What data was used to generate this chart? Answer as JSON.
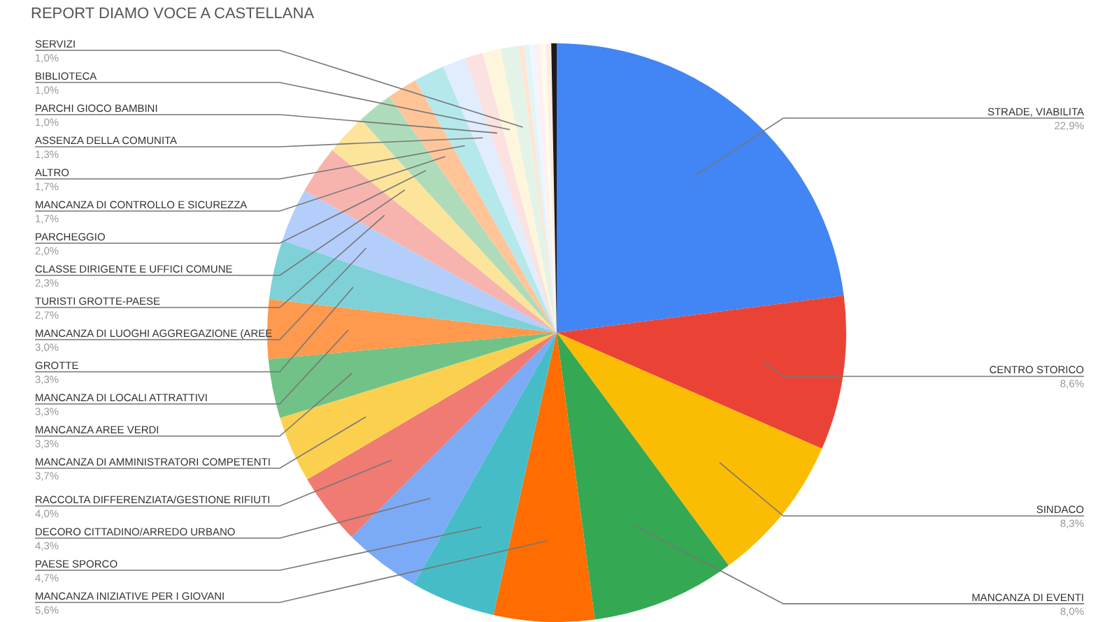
{
  "chart_data": {
    "type": "pie",
    "title": "REPORT DIAMO VOCE A CASTELLANA",
    "categories": [
      "STRADE, VIABILITA",
      "CENTRO STORICO",
      "SINDACO",
      "MANCANZA DI EVENTI",
      "MANCANZA  INIZIATIVE PER I GIOVANI",
      "PAESE SPORCO",
      "DECORO CITTADINO/ARREDO URBANO",
      "RACCOLTA DIFFERENZIATA/GESTIONE RIFIUTI",
      "MANCANZA DI AMMINISTRATORI COMPETENTI",
      "MANCANZA AREE VERDI",
      "MANCANZA DI LOCALI ATTRATTIVI",
      "GROTTE",
      "MANCANZA DI LUOGHI AGGREGAZIONE (AREE",
      "TURISTI GROTTE-PAESE",
      "CLASSE DIRIGENTE E UFFICI COMUNE",
      "PARCHEGGIO",
      "MANCANZA DI CONTROLLO E SICUREZZA",
      "ALTRO",
      "ASSENZA DELLA COMUNITA",
      "PARCHI GIOCO BAMBINI",
      "BIBLIOTECA",
      "SERVIZI",
      null,
      null,
      null,
      null,
      null,
      null,
      null
    ],
    "values": [
      22.9,
      8.6,
      8.3,
      8.0,
      5.6,
      4.7,
      4.3,
      4.0,
      3.7,
      3.3,
      3.3,
      3.3,
      3.0,
      2.7,
      2.3,
      2.0,
      1.7,
      1.7,
      1.3,
      1.0,
      1.0,
      1.0,
      0.3,
      0.3,
      0.3,
      0.3,
      0.3,
      0.3,
      0.3
    ],
    "value_labels": [
      "22,9%",
      "8,6%",
      "8,3%",
      "8,0%",
      "5,6%",
      "4,7%",
      "4,3%",
      "4,0%",
      "3,7%",
      "3,3%",
      "3,3%",
      "3,3%",
      "3,0%",
      "2,7%",
      "2,3%",
      "2,0%",
      "1,7%",
      "1,7%",
      "1,3%",
      "1,0%",
      "1,0%",
      "1,0%",
      null,
      null,
      null,
      null,
      null,
      null,
      null
    ],
    "colors": [
      "#4285f4",
      "#ea4335",
      "#fbbc04",
      "#34a853",
      "#ff6d01",
      "#46bdc6",
      "#7baaf7",
      "#f07b72",
      "#fcd04f",
      "#71c287",
      "#ff994d",
      "#7ed1d7",
      "#b3cefb",
      "#f7b4ae",
      "#fde49b",
      "#aedcba",
      "#ffc599",
      "#b5e8eb",
      "#e1ecfd",
      "#fbe1df",
      "#fef6dc",
      "#e3f3e7",
      "#ffe5d2",
      "#e0f5f6",
      "#f0f5fe",
      "#fdf0ef",
      "#fffaeb",
      "#fdeee3",
      "#1f1a17"
    ]
  }
}
